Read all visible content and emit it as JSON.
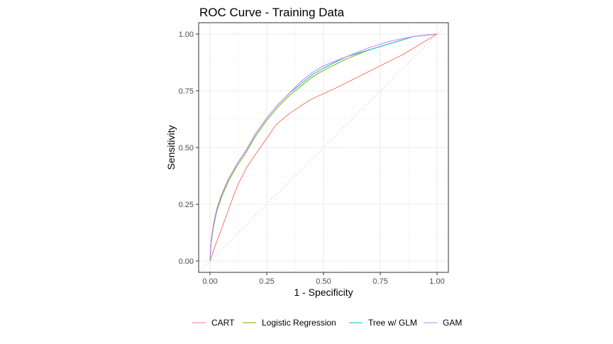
{
  "chart_data": {
    "type": "line",
    "title": "ROC Curve - Training Data",
    "xlabel": "1 - Specificity",
    "ylabel": "Sensitivity",
    "xlim": [
      0,
      1
    ],
    "ylim": [
      0,
      1
    ],
    "x_ticks": [
      "0.00",
      "0.25",
      "0.50",
      "0.75",
      "1.00"
    ],
    "y_ticks": [
      "0.00",
      "0.25",
      "0.50",
      "0.75",
      "1.00"
    ],
    "grid": true,
    "legend_position": "bottom",
    "reference_line": {
      "style": "dotted",
      "color": "#bfbfbf",
      "points": [
        [
          0,
          0
        ],
        [
          1,
          1
        ]
      ]
    },
    "series": [
      {
        "name": "CART",
        "color": "#F8766D",
        "points": [
          [
            0,
            0
          ],
          [
            0.02,
            0.06
          ],
          [
            0.05,
            0.14
          ],
          [
            0.09,
            0.25
          ],
          [
            0.12,
            0.33
          ],
          [
            0.16,
            0.41
          ],
          [
            0.2,
            0.47
          ],
          [
            0.25,
            0.54
          ],
          [
            0.29,
            0.6
          ],
          [
            0.35,
            0.65
          ],
          [
            0.44,
            0.71
          ],
          [
            0.55,
            0.76
          ],
          [
            0.65,
            0.81
          ],
          [
            0.75,
            0.86
          ],
          [
            0.85,
            0.91
          ],
          [
            0.95,
            0.97
          ],
          [
            1,
            1
          ]
        ]
      },
      {
        "name": "Logistic Regression",
        "color": "#7CAE00",
        "points": [
          [
            0,
            0
          ],
          [
            0.005,
            0.08
          ],
          [
            0.015,
            0.15
          ],
          [
            0.03,
            0.22
          ],
          [
            0.05,
            0.28
          ],
          [
            0.08,
            0.35
          ],
          [
            0.12,
            0.42
          ],
          [
            0.16,
            0.48
          ],
          [
            0.2,
            0.55
          ],
          [
            0.25,
            0.62
          ],
          [
            0.3,
            0.68
          ],
          [
            0.35,
            0.73
          ],
          [
            0.4,
            0.77
          ],
          [
            0.45,
            0.81
          ],
          [
            0.5,
            0.84
          ],
          [
            0.6,
            0.89
          ],
          [
            0.7,
            0.93
          ],
          [
            0.8,
            0.96
          ],
          [
            0.9,
            0.99
          ],
          [
            1,
            1
          ]
        ]
      },
      {
        "name": "Tree w/ GLM",
        "color": "#00BFC4",
        "points": [
          [
            0,
            0
          ],
          [
            0.005,
            0.09
          ],
          [
            0.015,
            0.16
          ],
          [
            0.03,
            0.23
          ],
          [
            0.05,
            0.29
          ],
          [
            0.08,
            0.36
          ],
          [
            0.12,
            0.43
          ],
          [
            0.16,
            0.49
          ],
          [
            0.2,
            0.56
          ],
          [
            0.25,
            0.63
          ],
          [
            0.3,
            0.69
          ],
          [
            0.35,
            0.74
          ],
          [
            0.4,
            0.78
          ],
          [
            0.45,
            0.82
          ],
          [
            0.5,
            0.85
          ],
          [
            0.6,
            0.9
          ],
          [
            0.7,
            0.93
          ],
          [
            0.8,
            0.96
          ],
          [
            0.9,
            0.99
          ],
          [
            1,
            1
          ]
        ]
      },
      {
        "name": "GAM",
        "color": "#C77CFF",
        "points": [
          [
            0,
            0
          ],
          [
            0.005,
            0.09
          ],
          [
            0.015,
            0.16
          ],
          [
            0.03,
            0.23
          ],
          [
            0.05,
            0.29
          ],
          [
            0.08,
            0.36
          ],
          [
            0.12,
            0.43
          ],
          [
            0.16,
            0.49
          ],
          [
            0.2,
            0.56
          ],
          [
            0.25,
            0.63
          ],
          [
            0.3,
            0.69
          ],
          [
            0.35,
            0.74
          ],
          [
            0.4,
            0.79
          ],
          [
            0.45,
            0.83
          ],
          [
            0.5,
            0.86
          ],
          [
            0.6,
            0.9
          ],
          [
            0.7,
            0.94
          ],
          [
            0.8,
            0.97
          ],
          [
            0.9,
            0.99
          ],
          [
            1,
            1
          ]
        ]
      }
    ]
  }
}
